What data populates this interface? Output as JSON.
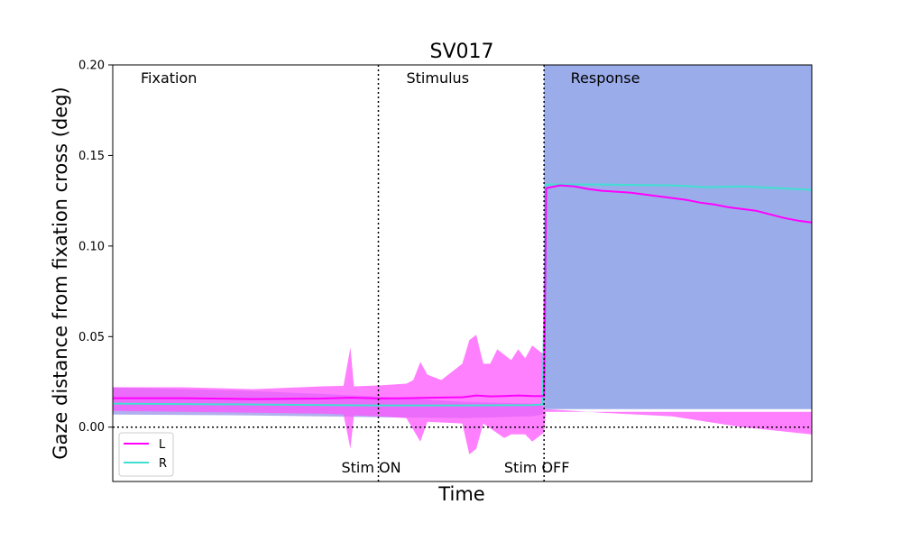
{
  "chart_data": {
    "type": "line",
    "title": "SV017",
    "xlabel": "Time",
    "ylabel": "Gaze distance from fixation cross (deg)",
    "ylim": [
      -0.03,
      0.2
    ],
    "xlim": [
      0,
      100
    ],
    "yticks": [
      "0.00",
      "0.05",
      "0.10",
      "0.15",
      "0.20"
    ],
    "ytick_values": [
      0.0,
      0.05,
      0.1,
      0.15,
      0.2
    ],
    "x_ticks_visible": false,
    "phases": [
      {
        "label": "Fixation",
        "x": 4
      },
      {
        "label": "Stimulus",
        "x": 42
      },
      {
        "label": "Response",
        "x": 65.5
      }
    ],
    "event_markers": [
      {
        "label": "Stim ON",
        "x": 38
      },
      {
        "label": "Stim OFF",
        "x": 61.7
      }
    ],
    "zero_line": true,
    "legend": {
      "position": "lower-left",
      "entries": [
        "L",
        "R"
      ]
    },
    "series": [
      {
        "name": "L",
        "color": "#ff00ff",
        "mean": [
          [
            0,
            0.016
          ],
          [
            10,
            0.016
          ],
          [
            20,
            0.0155
          ],
          [
            30,
            0.0158
          ],
          [
            34,
            0.0163
          ],
          [
            37,
            0.016
          ],
          [
            38,
            0.0158
          ],
          [
            42,
            0.016
          ],
          [
            46,
            0.0163
          ],
          [
            50,
            0.0165
          ],
          [
            52,
            0.0175
          ],
          [
            54,
            0.017
          ],
          [
            56,
            0.0172
          ],
          [
            58,
            0.0175
          ],
          [
            60,
            0.0172
          ],
          [
            61.7,
            0.0172
          ],
          [
            62,
            0.132
          ],
          [
            64,
            0.1335
          ],
          [
            66,
            0.133
          ],
          [
            68,
            0.1315
          ],
          [
            70,
            0.1305
          ],
          [
            72,
            0.13
          ],
          [
            74,
            0.1295
          ],
          [
            76,
            0.1285
          ],
          [
            78,
            0.1275
          ],
          [
            80,
            0.1265
          ],
          [
            82,
            0.1255
          ],
          [
            84,
            0.124
          ],
          [
            86,
            0.123
          ],
          [
            88,
            0.1215
          ],
          [
            90,
            0.1205
          ],
          [
            92,
            0.1195
          ],
          [
            94,
            0.1175
          ],
          [
            96,
            0.1155
          ],
          [
            98,
            0.114
          ],
          [
            100,
            0.113
          ]
        ],
        "upper": [
          [
            0,
            0.022
          ],
          [
            10,
            0.022
          ],
          [
            20,
            0.021
          ],
          [
            30,
            0.0225
          ],
          [
            33,
            0.0228
          ],
          [
            34,
            0.044
          ],
          [
            34.5,
            0.0225
          ],
          [
            38,
            0.023
          ],
          [
            42,
            0.024
          ],
          [
            43,
            0.026
          ],
          [
            44,
            0.036
          ],
          [
            45,
            0.029
          ],
          [
            47,
            0.026
          ],
          [
            48,
            0.029
          ],
          [
            50,
            0.035
          ],
          [
            51,
            0.048
          ],
          [
            52,
            0.051
          ],
          [
            53,
            0.035
          ],
          [
            54,
            0.035
          ],
          [
            55,
            0.043
          ],
          [
            56,
            0.04
          ],
          [
            57,
            0.037
          ],
          [
            58,
            0.043
          ],
          [
            59,
            0.038
          ],
          [
            60,
            0.045
          ],
          [
            61.7,
            0.04
          ]
        ],
        "lower": [
          [
            0,
            0.009
          ],
          [
            10,
            0.0085
          ],
          [
            20,
            0.008
          ],
          [
            30,
            0.0075
          ],
          [
            33,
            0.007
          ],
          [
            34,
            -0.012
          ],
          [
            34.5,
            0.0065
          ],
          [
            38,
            0.006
          ],
          [
            42,
            0.005
          ],
          [
            44,
            -0.008
          ],
          [
            45,
            0.003
          ],
          [
            50,
            0.002
          ],
          [
            51,
            -0.015
          ],
          [
            52,
            -0.012
          ],
          [
            53,
            0.002
          ],
          [
            56,
            -0.006
          ],
          [
            57,
            -0.004
          ],
          [
            59,
            -0.004
          ],
          [
            60,
            -0.008
          ],
          [
            61.7,
            -0.003
          ],
          [
            62,
            0.01
          ],
          [
            70,
            0.008
          ],
          [
            80,
            0.006
          ],
          [
            90,
            0.0
          ],
          [
            95,
            -0.002
          ],
          [
            100,
            -0.004
          ]
        ],
        "response_band_upper": 0.0085
      },
      {
        "name": "R",
        "color": "#40e0d0",
        "mean": [
          [
            0,
            0.013
          ],
          [
            20,
            0.0125
          ],
          [
            38,
            0.012
          ],
          [
            50,
            0.012
          ],
          [
            60,
            0.0122
          ],
          [
            61.5,
            0.0125
          ],
          [
            62,
            0.134
          ],
          [
            70,
            0.134
          ],
          [
            80,
            0.1335
          ],
          [
            85,
            0.1325
          ],
          [
            90,
            0.133
          ],
          [
            95,
            0.132
          ],
          [
            100,
            0.131
          ]
        ],
        "upper": [
          [
            0,
            0.022
          ],
          [
            20,
            0.02
          ],
          [
            38,
            0.017
          ],
          [
            50,
            0.014
          ],
          [
            60,
            0.013
          ],
          [
            61.5,
            0.013
          ]
        ],
        "lower": [
          [
            0,
            0.007
          ],
          [
            20,
            0.0065
          ],
          [
            38,
            0.0055
          ],
          [
            50,
            0.005
          ],
          [
            60,
            0.006
          ],
          [
            61.5,
            0.007
          ]
        ],
        "response_band_lower": 0.01
      }
    ],
    "band_colors": {
      "L": "#ff55ff",
      "R_response": "#9aacea",
      "R_pre": "#a7a6ee"
    }
  }
}
